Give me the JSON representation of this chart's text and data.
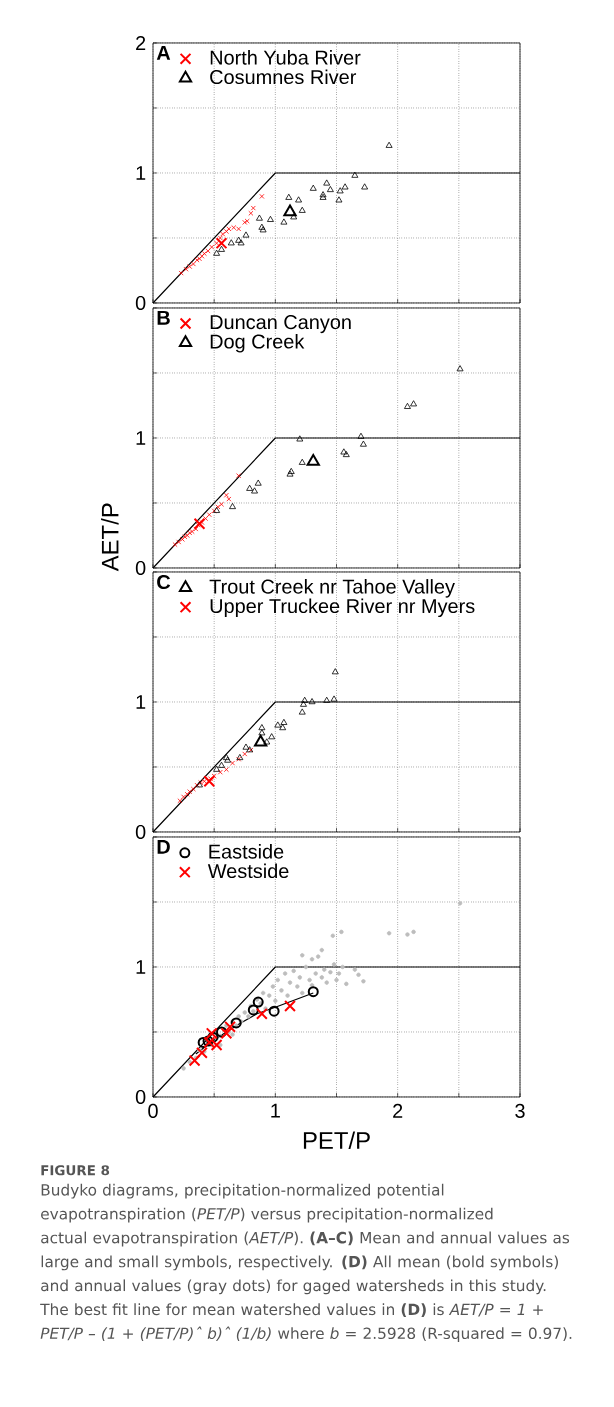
{
  "chart_data": [
    {
      "type": "scatter",
      "xlim": [
        0,
        3
      ],
      "ylim": [
        0,
        2
      ],
      "xticks": [
        0,
        {
          "value": 0.5,
          "label": null
        },
        1,
        {
          "value": 1.5,
          "label": null
        },
        2,
        {
          "value": 2.5,
          "label": null
        },
        3
      ],
      "yticks": [
        0,
        {
          "value": 0.5,
          "label": null
        },
        1,
        {
          "value": 1.5,
          "label": null
        },
        2
      ],
      "grid": true,
      "legend": "top left",
      "tick_labels": "y",
      "annotations": [
        "A"
      ],
      "series": [
        {
          "type": "line",
          "color": "#000000",
          "line_style": "solid",
          "x": [
            0,
            1,
            3
          ],
          "values": [
            0,
            1,
            1
          ]
        },
        {
          "color": "#ff0000",
          "marker": "cross",
          "x": [
            0.23,
            0.27,
            0.3,
            0.33,
            0.36,
            0.38,
            0.4,
            0.42,
            0.45,
            0.48,
            0.52,
            0.55,
            0.57,
            0.6,
            0.62,
            0.66,
            0.7,
            0.75,
            0.77,
            0.8,
            0.82,
            0.89
          ],
          "values": [
            0.23,
            0.26,
            0.28,
            0.3,
            0.33,
            0.34,
            0.36,
            0.38,
            0.4,
            0.43,
            0.46,
            0.5,
            0.53,
            0.55,
            0.57,
            0.58,
            0.57,
            0.62,
            0.63,
            0.69,
            0.73,
            0.82
          ]
        },
        {
          "color": "#000000",
          "marker": "triangle",
          "x": [
            0.52,
            0.56,
            0.64,
            0.7,
            0.72,
            0.76,
            0.87,
            0.89,
            0.9,
            0.96,
            1.07,
            1.11,
            1.19,
            1.22,
            1.15,
            1.31,
            1.42,
            1.39,
            1.39,
            1.45,
            1.53,
            1.52,
            1.57,
            1.65,
            1.73,
            1.93
          ],
          "values": [
            0.38,
            0.41,
            0.46,
            0.48,
            0.46,
            0.52,
            0.65,
            0.58,
            0.56,
            0.64,
            0.62,
            0.81,
            0.79,
            0.71,
            0.66,
            0.88,
            0.92,
            0.83,
            0.81,
            0.87,
            0.86,
            0.79,
            0.89,
            0.98,
            0.89,
            1.21
          ]
        },
        {
          "name": "North Yuba River",
          "color": "#ff0000",
          "marker": "cross",
          "x": [
            0.56
          ],
          "values": [
            0.46
          ]
        },
        {
          "name": "Cosumnes River",
          "color": "#000000",
          "marker": "triangle",
          "x": [
            1.12
          ],
          "values": [
            0.7
          ]
        }
      ]
    },
    {
      "type": "scatter",
      "xlim": [
        0,
        3
      ],
      "ylim": [
        0,
        2
      ],
      "xticks": [
        0,
        {
          "value": 0.5,
          "label": null
        },
        1,
        {
          "value": 1.5,
          "label": null
        },
        2,
        {
          "value": 2.5,
          "label": null
        },
        3
      ],
      "yticks": [
        0,
        {
          "value": 0.5,
          "label": null
        },
        1,
        {
          "value": 1.5,
          "label": null
        },
        {
          "value": 2,
          "label": null
        }
      ],
      "grid": true,
      "legend": "top left",
      "tick_labels": "y",
      "ylabel": "AET/P",
      "annotations": [
        "B"
      ],
      "series": [
        {
          "type": "line",
          "color": "#000000",
          "line_style": "solid",
          "x": [
            0,
            1,
            3
          ],
          "values": [
            0,
            1,
            1
          ]
        },
        {
          "color": "#ff0000",
          "marker": "cross",
          "x": [
            0.18,
            0.21,
            0.24,
            0.26,
            0.28,
            0.3,
            0.32,
            0.35,
            0.37,
            0.4,
            0.43,
            0.46,
            0.5,
            0.53,
            0.56,
            0.6,
            0.62,
            0.7
          ],
          "values": [
            0.18,
            0.2,
            0.22,
            0.24,
            0.25,
            0.27,
            0.28,
            0.3,
            0.33,
            0.35,
            0.38,
            0.41,
            0.44,
            0.47,
            0.49,
            0.56,
            0.53,
            0.71
          ]
        },
        {
          "color": "#000000",
          "marker": "triangle",
          "x": [
            0.52,
            0.65,
            0.79,
            0.83,
            0.86,
            1.12,
            1.13,
            1.22,
            1.2,
            1.56,
            1.58,
            1.7,
            1.72,
            2.08,
            2.13,
            2.51
          ],
          "values": [
            0.44,
            0.47,
            0.61,
            0.59,
            0.65,
            0.72,
            0.74,
            0.81,
            0.99,
            0.89,
            0.87,
            1.01,
            0.95,
            1.24,
            1.26,
            1.53
          ]
        },
        {
          "name": "Duncan Canyon",
          "color": "#ff0000",
          "marker": "cross",
          "x": [
            0.38
          ],
          "values": [
            0.34
          ]
        },
        {
          "name": "Dog Creek",
          "color": "#000000",
          "marker": "triangle",
          "x": [
            1.31
          ],
          "values": [
            0.82
          ]
        }
      ]
    },
    {
      "type": "scatter",
      "xlim": [
        0,
        3
      ],
      "ylim": [
        0,
        2
      ],
      "xticks": [
        0,
        {
          "value": 0.5,
          "label": null
        },
        1,
        {
          "value": 1.5,
          "label": null
        },
        2,
        {
          "value": 2.5,
          "label": null
        },
        3
      ],
      "yticks": [
        0,
        {
          "value": 0.5,
          "label": null
        },
        1,
        {
          "value": 1.5,
          "label": null
        },
        {
          "value": 2,
          "label": null
        }
      ],
      "grid": true,
      "legend": "top left",
      "tick_labels": "y",
      "annotations": [
        "C"
      ],
      "series": [
        {
          "type": "line",
          "color": "#000000",
          "line_style": "solid",
          "x": [
            0,
            1,
            3
          ],
          "values": [
            0,
            1,
            1
          ]
        },
        {
          "color": "#ff0000",
          "marker": "cross",
          "x": [
            0.22,
            0.25,
            0.28,
            0.3,
            0.33,
            0.36,
            0.39,
            0.42,
            0.47,
            0.5,
            0.55,
            0.6,
            0.65,
            0.7,
            0.75,
            0.8
          ],
          "values": [
            0.24,
            0.27,
            0.29,
            0.31,
            0.33,
            0.36,
            0.38,
            0.39,
            0.41,
            0.43,
            0.46,
            0.48,
            0.53,
            0.56,
            0.6,
            0.63
          ]
        },
        {
          "color": "#000000",
          "marker": "triangle",
          "x": [
            0.38,
            0.52,
            0.56,
            0.6,
            0.61,
            0.71,
            0.76,
            0.79,
            0.89,
            0.89,
            0.93,
            0.97,
            1.02,
            1.07,
            1.06,
            1.22,
            1.23,
            1.24,
            1.3,
            1.42,
            1.48,
            1.49
          ],
          "values": [
            0.36,
            0.48,
            0.51,
            0.57,
            0.55,
            0.57,
            0.65,
            0.63,
            0.8,
            0.76,
            0.69,
            0.73,
            0.82,
            0.84,
            0.8,
            0.92,
            0.98,
            1.01,
            1.0,
            1.01,
            1.02,
            1.23
          ]
        },
        {
          "name": "Trout Creek nr Tahoe Valley",
          "color": "#000000",
          "marker": "triangle",
          "x": [
            0.88
          ],
          "values": [
            0.69
          ]
        },
        {
          "name": "Upper Truckee River nr Myers",
          "color": "#ff0000",
          "marker": "cross",
          "x": [
            0.46
          ],
          "values": [
            0.39
          ]
        }
      ]
    },
    {
      "type": "scatter",
      "xlim": [
        0,
        3
      ],
      "ylim": [
        0,
        2
      ],
      "xticks": [
        0,
        {
          "value": 0.5,
          "label": null
        },
        1,
        {
          "value": 1.5,
          "label": null
        },
        2,
        {
          "value": 2.5,
          "label": null
        },
        3
      ],
      "yticks": [
        0,
        {
          "value": 0.5,
          "label": null
        },
        1,
        {
          "value": 1.5,
          "label": null
        },
        {
          "value": 2,
          "label": null
        }
      ],
      "grid": true,
      "legend": "top left",
      "xlabel": "PET/P",
      "annotations": [
        "D",
        "FIGURE 8",
        "Budyko diagrams, precipitation-normalized potential evapotranspiration (*PET/P*) versus precipitation-normalized actual evapotranspiration (*AET/P*). **(A–C)** Mean and annual values as large and small symbols, respectively. **(D)** All mean (bold symbols) and annual values (gray dots) for gaged watersheds in this study. The best fit line for mean watershed values in **(D)** is *AET/P = 1 + PET/P – (1 + (PET/P)ˆ b)ˆ (1/b)* where *b* = 2.5928 (R-squared = 0.97)."
      ],
      "series": [
        {
          "type": "line",
          "color": "#000000",
          "line_style": "solid",
          "x": [
            0,
            1,
            3
          ],
          "values": [
            0,
            1,
            1
          ]
        },
        {
          "color": "#bdbdbd",
          "marker": "circle",
          "x": [
            0.25,
            0.3,
            0.35,
            0.38,
            0.42,
            0.45,
            0.48,
            0.52,
            0.55,
            0.58,
            0.6,
            0.62,
            0.65,
            0.68,
            0.7,
            0.72,
            0.75,
            0.78,
            0.8,
            0.82,
            0.85,
            0.88,
            0.9,
            0.92,
            0.95,
            0.98,
            1.0,
            1.02,
            1.05,
            1.08,
            1.1,
            1.12,
            1.15,
            1.18,
            1.2,
            1.22,
            1.25,
            1.28,
            1.3,
            1.33,
            1.35,
            1.38,
            1.4,
            1.42,
            1.45,
            1.48,
            1.5,
            1.52,
            1.47,
            1.54,
            1.55,
            1.58,
            1.65,
            1.68,
            1.72,
            1.93,
            2.08,
            2.13,
            2.51,
            1.38,
            1.3,
            1.22,
            0.65,
            0.55
          ],
          "values": [
            0.22,
            0.27,
            0.3,
            0.36,
            0.35,
            0.42,
            0.4,
            0.45,
            0.47,
            0.52,
            0.55,
            0.5,
            0.58,
            0.55,
            0.62,
            0.58,
            0.65,
            0.62,
            0.7,
            0.66,
            0.75,
            0.72,
            0.8,
            0.68,
            0.78,
            0.85,
            0.74,
            0.9,
            0.82,
            0.95,
            0.78,
            0.88,
            0.97,
            0.85,
            0.92,
            0.8,
            1.0,
            0.9,
            0.86,
            0.95,
            1.08,
            0.92,
            0.98,
            0.88,
            0.96,
            1.02,
            0.9,
            0.95,
            1.24,
            1.27,
            1.0,
            0.87,
            0.98,
            0.94,
            0.89,
            1.26,
            1.25,
            1.27,
            1.49,
            1.13,
            1.06,
            1.09,
            0.48,
            0.4
          ]
        },
        {
          "type": "line",
          "color": "#000000",
          "line_style": "solid",
          "x": [
            0.35,
            0.5,
            0.7,
            0.85,
            1.0,
            1.31
          ],
          "values": [
            0.33,
            0.44,
            0.56,
            0.64,
            0.69,
            0.8
          ]
        },
        {
          "name": "Eastside",
          "color": "#000000",
          "marker": "circle",
          "x": [
            0.41,
            0.45,
            0.49,
            0.56,
            0.68,
            0.82,
            0.86,
            0.99,
            1.31
          ],
          "values": [
            0.42,
            0.43,
            0.46,
            0.5,
            0.57,
            0.67,
            0.73,
            0.66,
            0.81
          ]
        },
        {
          "name": "Westside",
          "color": "#ff0000",
          "marker": "cross",
          "x": [
            0.34,
            0.4,
            0.46,
            0.48,
            0.52,
            0.6,
            0.63,
            0.89,
            1.12
          ],
          "values": [
            0.28,
            0.34,
            0.42,
            0.49,
            0.4,
            0.49,
            0.54,
            0.64,
            0.7
          ]
        }
      ]
    }
  ]
}
